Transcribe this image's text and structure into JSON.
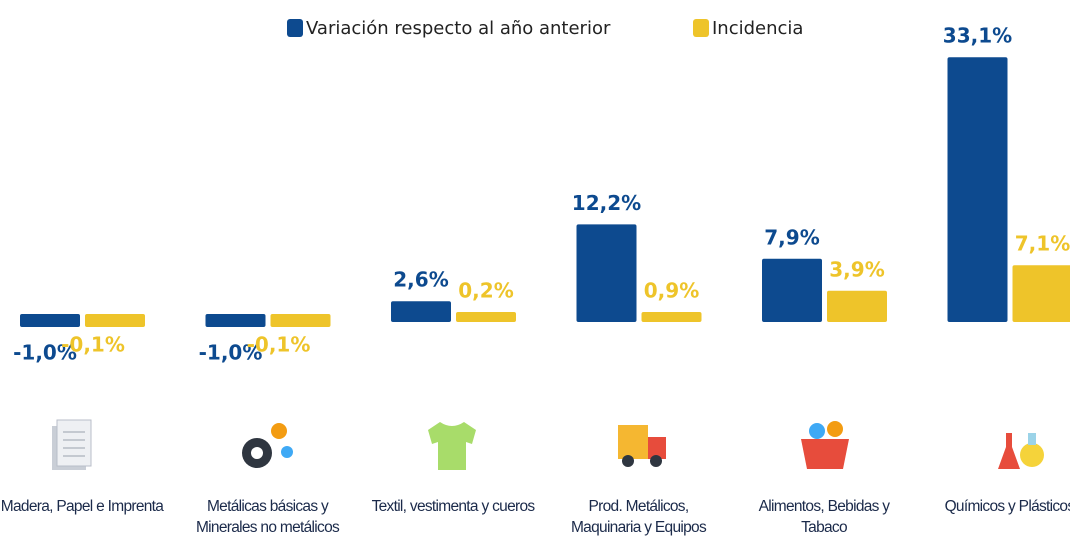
{
  "chart_data": {
    "type": "bar",
    "categories": [
      "Madera, Papel e Imprenta",
      "Metálicas básicas y Minerales no metálicos",
      "Textil, vestimenta y cueros",
      "Prod. Metálicos, Maquinaria y Equipos",
      "Alimentos, Bebidas y Tabaco",
      "Químicos y Plásticos"
    ],
    "series": [
      {
        "name": "Variación respecto al año anterior",
        "color": "#0d4a8f",
        "values": [
          -1.0,
          -1.0,
          2.6,
          12.2,
          7.9,
          33.1
        ],
        "value_labels": [
          "-1,0%",
          "-1,0%",
          "2,6%",
          "12,2%",
          "7,9%",
          "33,1%"
        ]
      },
      {
        "name": "Incidencia",
        "color": "#eec42a",
        "values": [
          -0.1,
          -0.1,
          0.2,
          0.9,
          3.9,
          7.1
        ],
        "value_labels": [
          "-0,1%",
          "-0,1%",
          "0,2%",
          "0,9%",
          "3,9%",
          "7,1%"
        ]
      }
    ]
  }
}
